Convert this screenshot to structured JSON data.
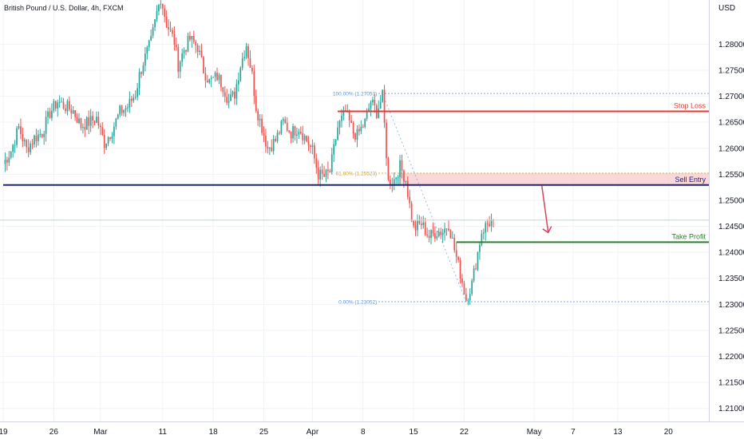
{
  "header": {
    "title": "British Pound / U.S. Dollar, 4h, FXCM"
  },
  "price_axis": {
    "currency": "USD"
  },
  "colors": {
    "up": "#26a69a",
    "down": "#ef5350",
    "stop_loss": "#e53935",
    "sell_entry": "#1a237e",
    "take_profit": "#2e7d32",
    "zone_fill": "#f8c9cc",
    "fib_line": "#5b8fd6",
    "fib_mid": "#d4a017",
    "grid": "#f0f3fa",
    "axis": "#787b86",
    "arrow": "#e0405a"
  },
  "chart_data": {
    "type": "candlestick",
    "title": "British Pound / U.S. Dollar, 4h, FXCM",
    "ylim": [
      1.2075,
      1.2885
    ],
    "y_ticks": [
      "1.21000",
      "1.21500",
      "1.22000",
      "1.22500",
      "1.23000",
      "1.23500",
      "1.24000",
      "1.24500",
      "1.25000",
      "1.25500",
      "1.26000",
      "1.26500",
      "1.27000",
      "1.27500",
      "1.28000"
    ],
    "x_ticks": [
      {
        "label": "19",
        "idx": 0
      },
      {
        "label": "26",
        "idx": 26
      },
      {
        "label": "Mar",
        "idx": 50
      },
      {
        "label": "11",
        "idx": 82
      },
      {
        "label": "18",
        "idx": 108
      },
      {
        "label": "25",
        "idx": 134
      },
      {
        "label": "Apr",
        "idx": 159
      },
      {
        "label": "8",
        "idx": 185
      },
      {
        "label": "15",
        "idx": 211
      },
      {
        "label": "22",
        "idx": 237
      },
      {
        "label": "May",
        "idx": 273
      },
      {
        "label": "7",
        "idx": 293
      },
      {
        "label": "13",
        "idx": 316
      },
      {
        "label": "20",
        "idx": 342
      }
    ],
    "visible_bars": 362,
    "path_points": [
      [
        0,
        1.257
      ],
      [
        4,
        1.2595
      ],
      [
        8,
        1.264
      ],
      [
        12,
        1.2598
      ],
      [
        16,
        1.262
      ],
      [
        20,
        1.263
      ],
      [
        24,
        1.2668
      ],
      [
        28,
        1.269
      ],
      [
        32,
        1.268
      ],
      [
        36,
        1.2672
      ],
      [
        40,
        1.2643
      ],
      [
        44,
        1.265
      ],
      [
        48,
        1.2658
      ],
      [
        52,
        1.261
      ],
      [
        56,
        1.2635
      ],
      [
        60,
        1.267
      ],
      [
        64,
        1.268
      ],
      [
        68,
        1.2705
      ],
      [
        70,
        1.274
      ],
      [
        72,
        1.2765
      ],
      [
        76,
        1.2805
      ],
      [
        79,
        1.286
      ],
      [
        81,
        1.289
      ],
      [
        84,
        1.284
      ],
      [
        88,
        1.2805
      ],
      [
        90,
        1.276
      ],
      [
        93,
        1.279
      ],
      [
        96,
        1.281
      ],
      [
        100,
        1.2795
      ],
      [
        103,
        1.275
      ],
      [
        106,
        1.2728
      ],
      [
        110,
        1.2738
      ],
      [
        113,
        1.272
      ],
      [
        116,
        1.269
      ],
      [
        119,
        1.2705
      ],
      [
        122,
        1.276
      ],
      [
        125,
        1.28
      ],
      [
        128,
        1.274
      ],
      [
        130,
        1.268
      ],
      [
        133,
        1.264
      ],
      [
        136,
        1.26
      ],
      [
        140,
        1.2615
      ],
      [
        144,
        1.265
      ],
      [
        148,
        1.263
      ],
      [
        152,
        1.264
      ],
      [
        156,
        1.2615
      ],
      [
        159,
        1.2595
      ],
      [
        162,
        1.255
      ],
      [
        165,
        1.2545
      ],
      [
        168,
        1.2555
      ],
      [
        172,
        1.264
      ],
      [
        176,
        1.267
      ],
      [
        180,
        1.263
      ],
      [
        182,
        1.2625
      ],
      [
        186,
        1.265
      ],
      [
        189,
        1.269
      ],
      [
        192,
        1.267
      ],
      [
        195,
        1.27
      ],
      [
        198,
        1.2535
      ],
      [
        201,
        1.254
      ],
      [
        204,
        1.2565
      ],
      [
        207,
        1.254
      ],
      [
        209,
        1.249
      ],
      [
        211,
        1.2445
      ],
      [
        215,
        1.2455
      ],
      [
        219,
        1.243
      ],
      [
        223,
        1.244
      ],
      [
        226,
        1.244
      ],
      [
        229,
        1.2455
      ],
      [
        232,
        1.2405
      ],
      [
        235,
        1.236
      ],
      [
        238,
        1.231
      ],
      [
        241,
        1.234
      ],
      [
        244,
        1.24
      ],
      [
        246,
        1.244
      ],
      [
        249,
        1.2455
      ],
      [
        252,
        1.2462
      ]
    ],
    "fibonacci": [
      {
        "label": "100.00% (1.27053)",
        "price": 1.27053
      },
      {
        "label": "61.80% (1.25523)",
        "price": 1.25523
      },
      {
        "label": "0.00% (1.23052)",
        "price": 1.23052
      }
    ],
    "levels": [
      {
        "name": "Stop Loss",
        "price": 1.2671,
        "tag": "1.26710"
      },
      {
        "name": "Sell Entry",
        "price": 1.25294,
        "tag": "1.25294"
      },
      {
        "name": "Take Profit",
        "price": 1.24196,
        "tag": "1.24196"
      }
    ],
    "current_price": 1.2462,
    "sell_zone": [
      1.25294,
      1.25523
    ]
  }
}
